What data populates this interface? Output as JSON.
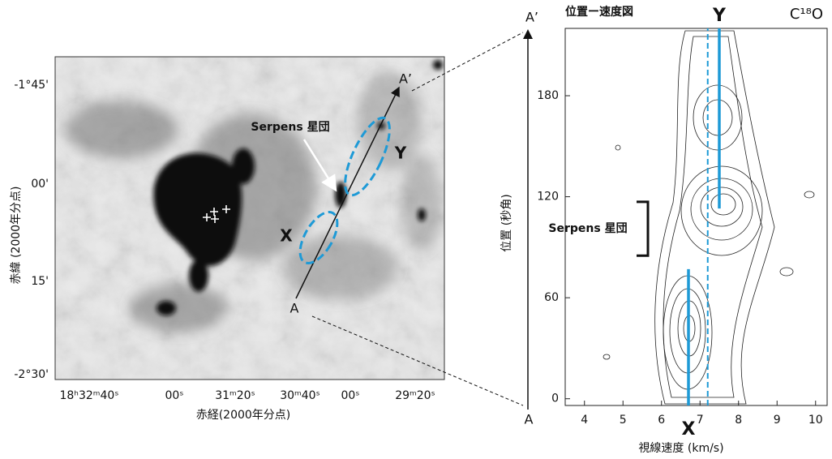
{
  "map": {
    "y_label": "赤緯 (2000年分点)",
    "x_label": "赤経(2000年分点)",
    "y_ticks": [
      "-1°45'",
      "00'",
      "15'",
      "-2°30'"
    ],
    "x_ticks": [
      "18ʰ32ᵐ40ˢ",
      "00ˢ",
      "31ᵐ20ˢ",
      "30ᵐ40ˢ",
      "00ˢ",
      "29ᵐ20ˢ"
    ],
    "cluster_label": "Serpens 星団",
    "region_x": "X",
    "region_y": "Y",
    "end_a": "A",
    "end_a_prime": "A’"
  },
  "pv": {
    "title": "位置ー速度図",
    "molecule": "C¹⁸O",
    "axis_end_top": "A’",
    "axis_end_bottom": "A",
    "x_label": "視線速度 (km/s)",
    "y_label": "位置 (秒角)",
    "cluster_label": "Serpens 星団",
    "xlim": [
      3.5,
      10.3
    ],
    "ylim": [
      -4,
      220
    ],
    "xticks": [
      4,
      5,
      6,
      7,
      8,
      9,
      10
    ],
    "yticks": [
      0,
      60,
      120,
      180
    ],
    "line_x": {
      "label": "X",
      "velocity": 6.7,
      "top": 77
    },
    "line_y": {
      "label": "Y",
      "velocity": 7.5,
      "bottom": 113
    },
    "line_mid": {
      "velocity": 7.2
    },
    "cluster_span": [
      85,
      117
    ]
  }
}
